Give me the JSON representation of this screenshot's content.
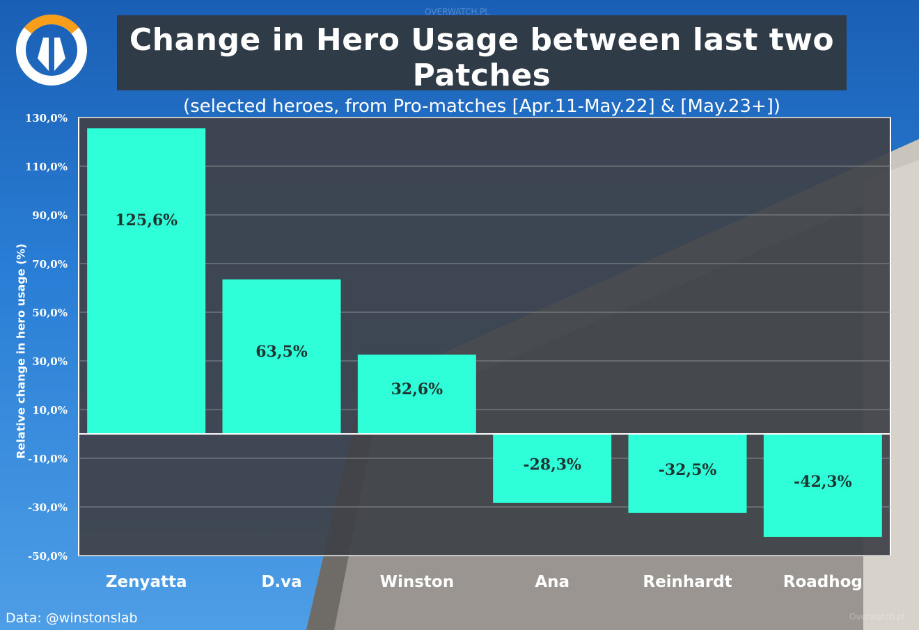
{
  "header": {
    "title": "Change in Hero Usage between last two Patches",
    "subtitle": "(selected heroes, from Pro-matches [Apr.11-May.22] & [May.23+])",
    "watermark_top": "OVERWATCH.PL",
    "watermark_bottom": "Overwatch.pl"
  },
  "footer": {
    "credit": "Data: @winstonslab"
  },
  "colors": {
    "bar": "#2effd9",
    "plot_bg": "rgba(62,66,72,0.93)",
    "logo_orange": "#f99e1a",
    "logo_white": "#ffffff"
  },
  "chart_data": {
    "type": "bar",
    "title": "Change in Hero Usage between last two Patches",
    "subtitle": "(selected heroes, from Pro-matches [Apr.11-May.22] & [May.23+])",
    "ylabel": "Relative change in hero usage (%)",
    "xlabel": "",
    "categories": [
      "Zenyatta",
      "D.va",
      "Winston",
      "Ana",
      "Reinhardt",
      "Roadhog"
    ],
    "values": [
      125.6,
      63.5,
      32.6,
      -28.3,
      -32.5,
      -42.3
    ],
    "data_labels": [
      "125,6%",
      "63,5%",
      "32,6%",
      "-28,3%",
      "-32,5%",
      "-42,3%"
    ],
    "ylim": [
      -50,
      130
    ],
    "yticks": [
      130,
      110,
      90,
      70,
      50,
      30,
      10,
      -10,
      -30,
      -50
    ],
    "ytick_labels": [
      "130,0%",
      "110,0%",
      "90,0%",
      "70,0%",
      "50,0%",
      "30,0%",
      "10,0%",
      "-10,0%",
      "-30,0%",
      "-50,0%"
    ],
    "grid": true,
    "legend": "none"
  }
}
